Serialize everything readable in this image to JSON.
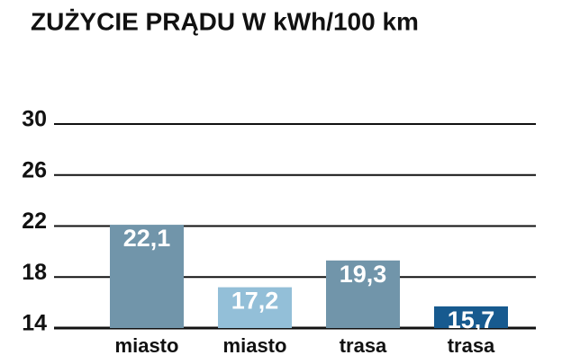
{
  "chart_data": {
    "type": "bar",
    "title": "ZUŻYCIE PRĄDU W kWh/100 km",
    "categories": [
      "miasto",
      "miasto",
      "trasa",
      "trasa"
    ],
    "values": [
      22.1,
      17.2,
      19.3,
      15.7
    ],
    "value_labels": [
      "22,1",
      "17,2",
      "19,3",
      "15,7"
    ],
    "colors": [
      "#7195aa",
      "#93bfd8",
      "#7195aa",
      "#175a8f"
    ],
    "ylim": [
      14,
      30
    ],
    "yticks": [
      14,
      18,
      22,
      26,
      30
    ],
    "grid": true
  }
}
